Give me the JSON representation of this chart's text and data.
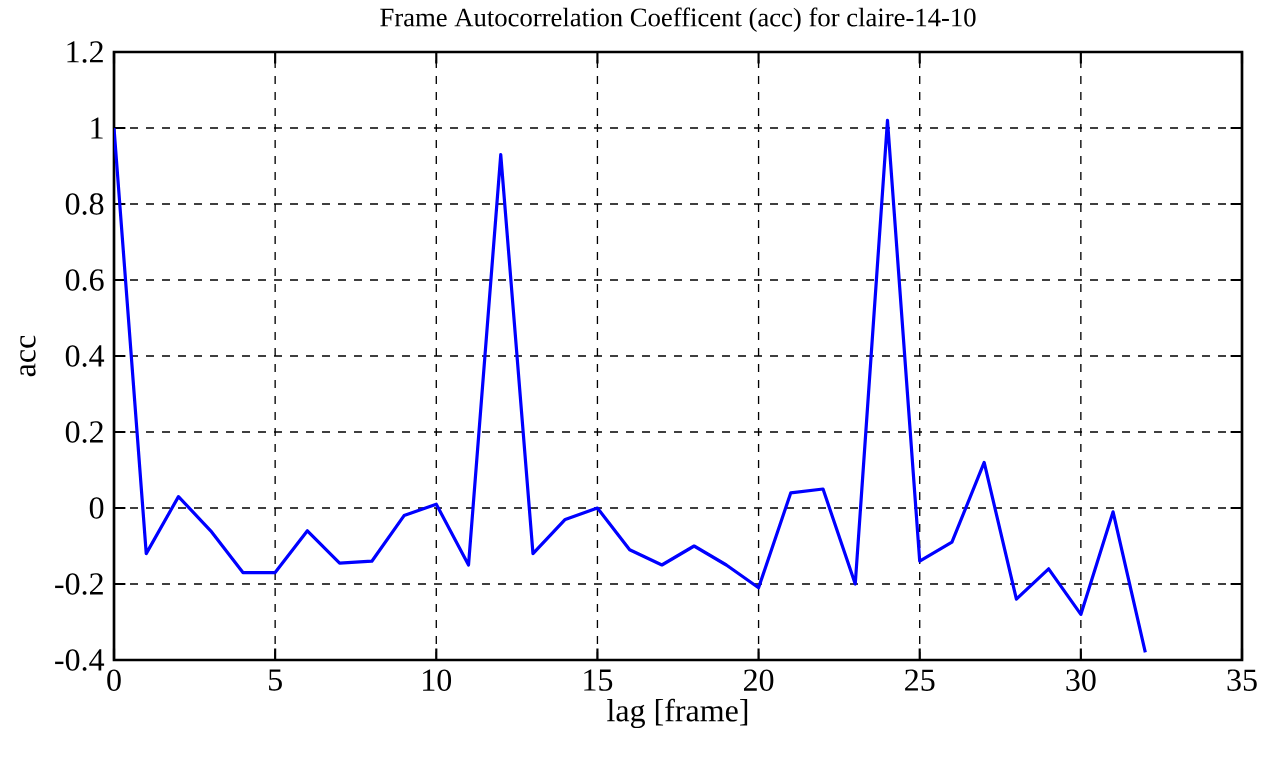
{
  "chart_data": {
    "type": "line",
    "title": "Frame Autocorrelation Coefficent (acc) for claire-14-10",
    "xlabel": "lag [frame]",
    "ylabel": "acc",
    "x": [
      0,
      1,
      2,
      3,
      4,
      5,
      6,
      7,
      8,
      9,
      10,
      11,
      12,
      13,
      14,
      15,
      16,
      17,
      18,
      19,
      20,
      21,
      22,
      23,
      24,
      25,
      26,
      27,
      28,
      29,
      30,
      31,
      32
    ],
    "series": [
      {
        "color": "#0000ff",
        "values": [
          1.0,
          -0.12,
          0.03,
          -0.06,
          -0.17,
          -0.17,
          -0.06,
          -0.145,
          -0.14,
          -0.02,
          0.01,
          -0.15,
          0.93,
          -0.12,
          -0.03,
          0.0,
          -0.11,
          -0.15,
          -0.1,
          -0.15,
          -0.21,
          0.04,
          0.05,
          -0.2,
          1.02,
          -0.14,
          -0.09,
          0.12,
          -0.24,
          -0.16,
          -0.28,
          -0.01,
          -0.38
        ]
      }
    ],
    "xlim": [
      0,
      35
    ],
    "ylim": [
      -0.4,
      1.2
    ],
    "xticks": [
      0,
      5,
      10,
      15,
      20,
      25,
      30,
      35
    ],
    "yticks": [
      -0.4,
      -0.2,
      0,
      0.2,
      0.4,
      0.6,
      0.8,
      1,
      1.2
    ],
    "grid": true,
    "line_style": "solid",
    "marker": "none"
  }
}
